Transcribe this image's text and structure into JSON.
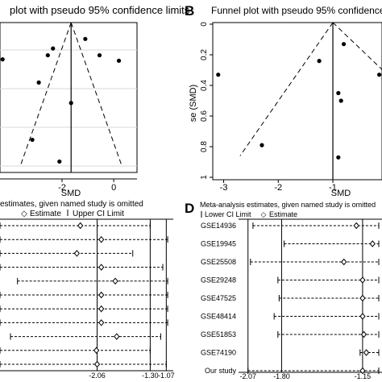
{
  "panels": [
    {
      "letter": "",
      "title": "plot with pseudo 95% confidence limits"
    },
    {
      "letter": "B",
      "title": "Funnel plot with pseudo 95% confidence limits"
    },
    {
      "letter": "",
      "title": "estimates, given named study is omitted",
      "legend": [
        "",
        "Estimate",
        "Upper CI Limit"
      ]
    },
    {
      "letter": "D",
      "title": "Meta-analysis estimates, given named study is omitted",
      "legend": [
        "Lower CI Limit",
        "Estimate",
        ""
      ]
    }
  ],
  "chart_data": [
    {
      "type": "scatter",
      "panel": "A",
      "title": "plot with pseudo 95% confidence limits",
      "xlabel": "SMD",
      "x_ticks": [
        "-2",
        "0"
      ],
      "x_tick_values": [
        -2,
        0
      ],
      "xlim": [
        -4.4,
        0.9
      ],
      "ylim": [
        0,
        1.1
      ],
      "summary_smd": -1.65,
      "points": [
        {
          "x": -4.3,
          "y": 0.27
        },
        {
          "x": -1.1,
          "y": 0.12
        },
        {
          "x": -2.35,
          "y": 0.19
        },
        {
          "x": -2.55,
          "y": 0.24
        },
        {
          "x": -0.55,
          "y": 0.24
        },
        {
          "x": 0.2,
          "y": 0.28
        },
        {
          "x": -2.9,
          "y": 0.44
        },
        {
          "x": -1.65,
          "y": 0.59
        },
        {
          "x": -3.15,
          "y": 0.86
        },
        {
          "x": -2.1,
          "y": 1.02
        }
      ]
    },
    {
      "type": "scatter",
      "panel": "B",
      "title": "Funnel plot with pseudo 95% confidence limits",
      "xlabel": "SMD",
      "ylabel": "se (SMD)",
      "x_ticks": [
        "-3",
        "-2",
        "-1"
      ],
      "x_tick_values": [
        -3,
        -2,
        -1
      ],
      "y_ticks": [
        "0",
        "0.2",
        "0.4",
        "0.6",
        "0.8",
        "1"
      ],
      "y_tick_values": [
        0,
        0.2,
        0.4,
        0.6,
        0.8,
        1
      ],
      "xlim": [
        -3.2,
        -0.1
      ],
      "ylim": [
        0,
        1
      ],
      "summary_smd": -1.0,
      "points": [
        {
          "x": -3.1,
          "y": 0.33
        },
        {
          "x": -1.25,
          "y": 0.24
        },
        {
          "x": -0.8,
          "y": 0.13
        },
        {
          "x": -0.15,
          "y": 0.33
        },
        {
          "x": -0.9,
          "y": 0.45
        },
        {
          "x": -0.85,
          "y": 0.5
        },
        {
          "x": -2.3,
          "y": 0.79
        },
        {
          "x": -0.9,
          "y": 0.87
        }
      ]
    },
    {
      "type": "forest",
      "panel": "C",
      "title": "estimates, given named study is omitted",
      "x_ticks": [
        "-2.06",
        "-1.30",
        "-1.07"
      ],
      "x_tick_values": [
        -2.06,
        -1.3,
        -1.07
      ],
      "xlim": [
        -3.45,
        -0.97
      ],
      "reference_lines": [
        -2.06,
        -1.3,
        -1.07
      ],
      "rows": [
        {
          "label": "",
          "lower": -3.45,
          "estimate": -2.3,
          "upper": -1.3
        },
        {
          "label": "",
          "lower": -3.45,
          "estimate": -2.0,
          "upper": -1.05
        },
        {
          "label": "",
          "lower": -3.45,
          "estimate": -2.35,
          "upper": -1.55
        },
        {
          "label": "",
          "lower": -3.45,
          "estimate": -2.0,
          "upper": -1.12
        },
        {
          "label": "",
          "lower": -3.2,
          "estimate": -1.8,
          "upper": -1.05
        },
        {
          "label": "",
          "lower": -3.45,
          "estimate": -2.0,
          "upper": -1.05
        },
        {
          "label": "",
          "lower": -3.45,
          "estimate": -2.0,
          "upper": -1.05
        },
        {
          "label": "",
          "lower": -3.45,
          "estimate": -2.0,
          "upper": -1.05
        },
        {
          "label": "",
          "lower": -3.3,
          "estimate": -1.78,
          "upper": -1.15
        },
        {
          "label": "",
          "lower": -3.45,
          "estimate": -2.07,
          "upper": -1.3
        },
        {
          "label": "",
          "lower": -3.45,
          "estimate": -2.06,
          "upper": -1.07
        }
      ]
    },
    {
      "type": "forest",
      "panel": "D",
      "title": "Meta-analysis estimates, given named study is omitted",
      "x_ticks": [
        "-2.07",
        "-1.80",
        "-1.15"
      ],
      "x_tick_values": [
        -2.07,
        -1.8,
        -1.15
      ],
      "xlim": [
        -2.12,
        -1.02
      ],
      "reference_lines": [
        -2.07,
        -1.8,
        -1.15
      ],
      "rows": [
        {
          "label": "GSE14936",
          "lower": -2.03,
          "estimate": -1.2,
          "upper": -1.02
        },
        {
          "label": "GSE19945",
          "lower": -1.78,
          "estimate": -1.07,
          "upper": -1.02
        },
        {
          "label": "GSE25508",
          "lower": -2.05,
          "estimate": -1.3,
          "upper": -1.02
        },
        {
          "label": "GSE29248",
          "lower": -1.83,
          "estimate": -1.15,
          "upper": -1.02
        },
        {
          "label": "GSE47525",
          "lower": -1.82,
          "estimate": -1.15,
          "upper": -1.02
        },
        {
          "label": "GSE48414",
          "lower": -1.86,
          "estimate": -1.15,
          "upper": -1.02
        },
        {
          "label": "GSE51853",
          "lower": -1.83,
          "estimate": -1.14,
          "upper": -1.02
        },
        {
          "label": "GSE74190",
          "lower": -1.17,
          "estimate": -1.12,
          "upper": -1.02
        },
        {
          "label": "Our study",
          "lower": -2.07,
          "estimate": -1.15,
          "upper": -1.02
        }
      ]
    }
  ]
}
